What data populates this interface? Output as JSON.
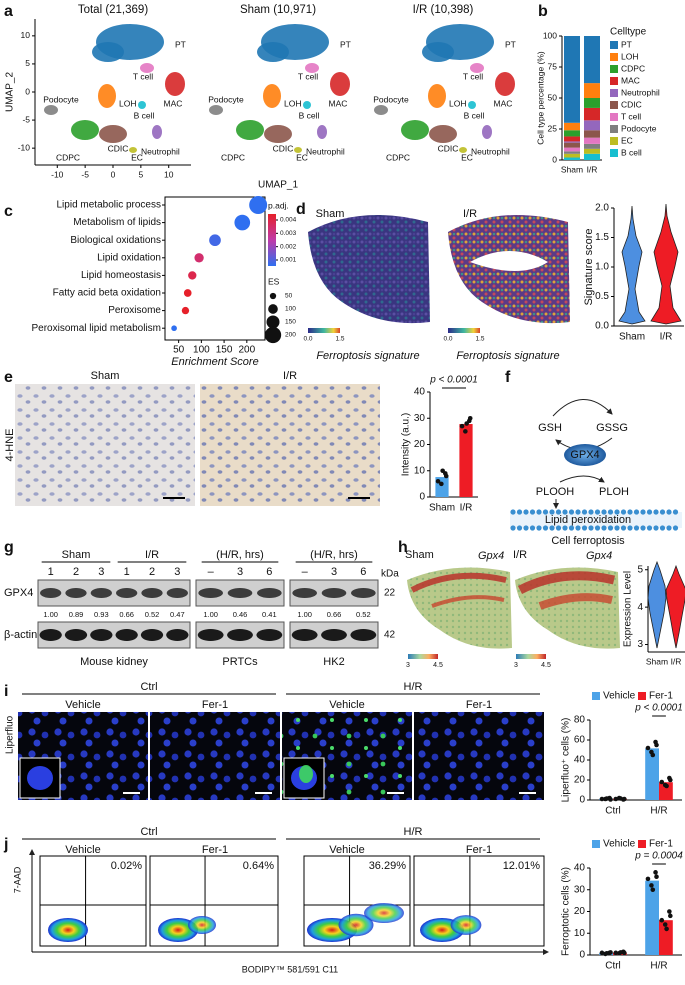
{
  "labels": [
    "a",
    "b",
    "c",
    "d",
    "e",
    "f",
    "g",
    "h",
    "i",
    "j"
  ],
  "a": {
    "titles": [
      "Total (21,369)",
      "Sham (10,971)",
      "I/R (10,398)"
    ],
    "xlabel": "UMAP_1",
    "ylabel": "UMAP_2",
    "xlim": [
      -14,
      14
    ],
    "ylim": [
      -13,
      13
    ],
    "xticks": [
      -10,
      -5,
      0,
      5,
      10
    ],
    "yticks": [
      -10,
      -5,
      0,
      5,
      10
    ],
    "clusters": [
      "PT",
      "LOH",
      "CDPC",
      "MAC",
      "Neutrophil",
      "CDIC",
      "T cell",
      "B cell",
      "EC",
      "Podocyte"
    ]
  },
  "b": {
    "type": "bar",
    "stacked": true,
    "ylabel": "Cell type percentage (%)",
    "categories": [
      "Sham",
      "I/R"
    ],
    "ylim": [
      0,
      100
    ],
    "yticks": [
      0,
      25,
      50,
      75,
      100
    ],
    "legend_title": "Celltype",
    "series": [
      {
        "name": "PT",
        "color": "#1f77b4",
        "values": [
          70,
          38
        ]
      },
      {
        "name": "LOH",
        "color": "#ff7f0e",
        "values": [
          6,
          12
        ]
      },
      {
        "name": "CDPC",
        "color": "#2ca02c",
        "values": [
          5,
          8
        ]
      },
      {
        "name": "MAC",
        "color": "#d62728",
        "values": [
          4,
          10
        ]
      },
      {
        "name": "Neutrophil",
        "color": "#9467bd",
        "values": [
          1,
          8
        ]
      },
      {
        "name": "CDIC",
        "color": "#8c564b",
        "values": [
          4,
          6
        ]
      },
      {
        "name": "T cell",
        "color": "#e377c2",
        "values": [
          3,
          5
        ]
      },
      {
        "name": "Podocyte",
        "color": "#7f7f7f",
        "values": [
          2,
          4
        ]
      },
      {
        "name": "EC",
        "color": "#bcbd22",
        "values": [
          3,
          4
        ]
      },
      {
        "name": "B cell",
        "color": "#17becf",
        "values": [
          2,
          5
        ]
      }
    ]
  },
  "c": {
    "type": "scatter",
    "xlabel": "Enrichment Score",
    "terms": [
      "Lipid metabolic process",
      "Metabolism of lipids",
      "Biological oxidations",
      "Lipid oxidation",
      "Lipid homeostasis",
      "Fatty acid beta oxidation",
      "Peroxisome",
      "Peroxisomal lipid metabolism"
    ],
    "es": [
      225,
      190,
      130,
      95,
      80,
      70,
      65,
      40
    ],
    "padj": [
      0.0005,
      0.0004,
      0.0012,
      0.0032,
      0.0036,
      0.0042,
      0.0045,
      0.0006
    ],
    "xlim": [
      20,
      240
    ],
    "xticks": [
      50,
      100,
      150,
      200
    ],
    "color_title": "p.adj.",
    "color_ticks": [
      0.004,
      0.003,
      0.002,
      0.001
    ],
    "size_title": "ES",
    "size_ticks": [
      50,
      100,
      150,
      200
    ]
  },
  "d": {
    "images": [
      {
        "title": "Sham",
        "caption": "Ferroptosis signature",
        "cbar": [
          {
            "value": 0,
            "label": "0.0"
          },
          1.5
        ]
      },
      {
        "title": "I/R",
        "caption": "Ferroptosis signature",
        "cbar": [
          {
            "value": 0,
            "label": "0.0"
          },
          1.5
        ]
      }
    ],
    "violin": {
      "ylabel": "Signature score",
      "categories": [
        "Sham",
        "I/R"
      ],
      "ylim": [
        0,
        2
      ],
      "yticks": [
        {
          "value": 0,
          "label": "0.0"
        },
        0.5,
        {
          "value": 1,
          "label": "1.0"
        },
        1.5,
        {
          "value": 2,
          "label": "2.0"
        }
      ]
    }
  },
  "e": {
    "images": [
      "Sham",
      "I/R"
    ],
    "stain": "4-HNE",
    "chart": {
      "type": "bar",
      "ylabel": "Intensity (a.u.)",
      "categories": [
        "Sham",
        "I/R"
      ],
      "values": [
        7.6,
        27.8
      ],
      "points": [
        [
          6,
          9,
          5,
          8,
          10
        ],
        [
          27,
          29,
          25,
          30,
          28
        ]
      ],
      "colors": [
        "#4da3e8",
        "#ee1c25"
      ],
      "ylim": [
        0,
        40
      ],
      "yticks": [
        0,
        10,
        20,
        30,
        40
      ],
      "annotation": "p < 0.0001"
    }
  },
  "f": {
    "nodes": [
      "GSH",
      "GSSG",
      "GPX4",
      "PLOOH",
      "PLOH",
      "Lipid peroxidation",
      "Cell ferroptosis"
    ]
  },
  "g": {
    "kda_label": "kDa",
    "rows": [
      "GPX4",
      "β-actin"
    ],
    "kda": [
      "22",
      "42"
    ],
    "blots": [
      {
        "headers": [
          {
            "text": "Sham",
            "lanes": [
              "1",
              "2",
              "3"
            ]
          },
          {
            "text": "I/R",
            "lanes": [
              "1",
              "2",
              "3"
            ]
          }
        ],
        "quant": [
          "1.00",
          "0.89",
          "0.93",
          "0.66",
          "0.52",
          "0.47"
        ],
        "caption": "Mouse kidney"
      },
      {
        "headers": [
          {
            "text": "(H/R, hrs)",
            "lanes": [
              "–",
              "3",
              "6"
            ]
          }
        ],
        "quant": [
          "1.00",
          "0.46",
          "0.41"
        ],
        "caption": "PRTCs"
      },
      {
        "headers": [
          {
            "text": "(H/R, hrs)",
            "lanes": [
              "–",
              "3",
              "6"
            ]
          }
        ],
        "quant": [
          "1.00",
          "0.66",
          "0.52"
        ],
        "caption": "HK2"
      }
    ]
  },
  "h": {
    "images": [
      {
        "title": "Sham",
        "gene": "Gpx4",
        "cbar": [
          3,
          4.5
        ]
      },
      {
        "title": "I/R",
        "gene": "Gpx4",
        "cbar": [
          3,
          4.5
        ]
      }
    ],
    "violin": {
      "ylabel": "Expression Level",
      "categories": [
        "Sham",
        "I/R"
      ],
      "ylim": [
        2.8,
        5.1
      ],
      "yticks": [
        3,
        4,
        5
      ]
    }
  },
  "i": {
    "conditions": [
      "Ctrl",
      "H/R"
    ],
    "treatments": [
      "Vehicle",
      "Fer-1",
      "Vehicle",
      "Fer-1"
    ],
    "stain": "Liperfluo",
    "chart": {
      "type": "bar",
      "ylabel": "Liperfluo⁺ cells (%)",
      "categories": [
        "Ctrl",
        "H/R"
      ],
      "series": [
        {
          "name": "Vehicle",
          "color": "#4da3e8",
          "values": [
            1.2,
            51.6
          ],
          "points": [
            [
              1,
              2,
              1,
              0.5,
              1.5
            ],
            [
              52,
              58,
              48,
              55,
              45
            ]
          ]
        },
        {
          "name": "Fer-1",
          "color": "#ee1c25",
          "values": [
            1.2,
            17.8
          ],
          "points": [
            [
              1,
              0.5,
              2,
              1,
              1.5
            ],
            [
              18,
              22,
              15,
              20,
              14
            ]
          ]
        }
      ],
      "ylim": [
        0,
        80
      ],
      "yticks": [
        0,
        20,
        40,
        60,
        80
      ],
      "annotation": "p < 0.0001"
    }
  },
  "j": {
    "conditions": [
      "Ctrl",
      "H/R"
    ],
    "treatments": [
      "Vehicle",
      "Fer-1",
      "Vehicle",
      "Fer-1"
    ],
    "quadrant_labels": [
      "0.02%",
      "0.64%",
      "36.29%",
      "12.01%"
    ],
    "ylabel": "7-AAD",
    "xlabel": "BODIPY™ 581/591 C11",
    "chart": {
      "type": "bar",
      "ylabel": "Ferroptotic cells (%)",
      "categories": [
        "Ctrl",
        "H/R"
      ],
      "series": [
        {
          "name": "Vehicle",
          "color": "#4da3e8",
          "values": [
            0.9,
            34.2
          ],
          "points": [
            [
              1,
              1,
              0.5,
              1.2,
              0.8
            ],
            [
              35,
              38,
              32,
              36,
              30
            ]
          ]
        },
        {
          "name": "Fer-1",
          "color": "#ee1c25",
          "values": [
            1.1,
            16
          ],
          "points": [
            [
              1,
              1.5,
              0.8,
              1,
              1.2
            ],
            [
              16,
              20,
              14,
              18,
              12
            ]
          ]
        }
      ],
      "ylim": [
        0,
        40
      ],
      "yticks": [
        0,
        10,
        20,
        30,
        40
      ],
      "annotation": "p = 0.0004"
    }
  }
}
